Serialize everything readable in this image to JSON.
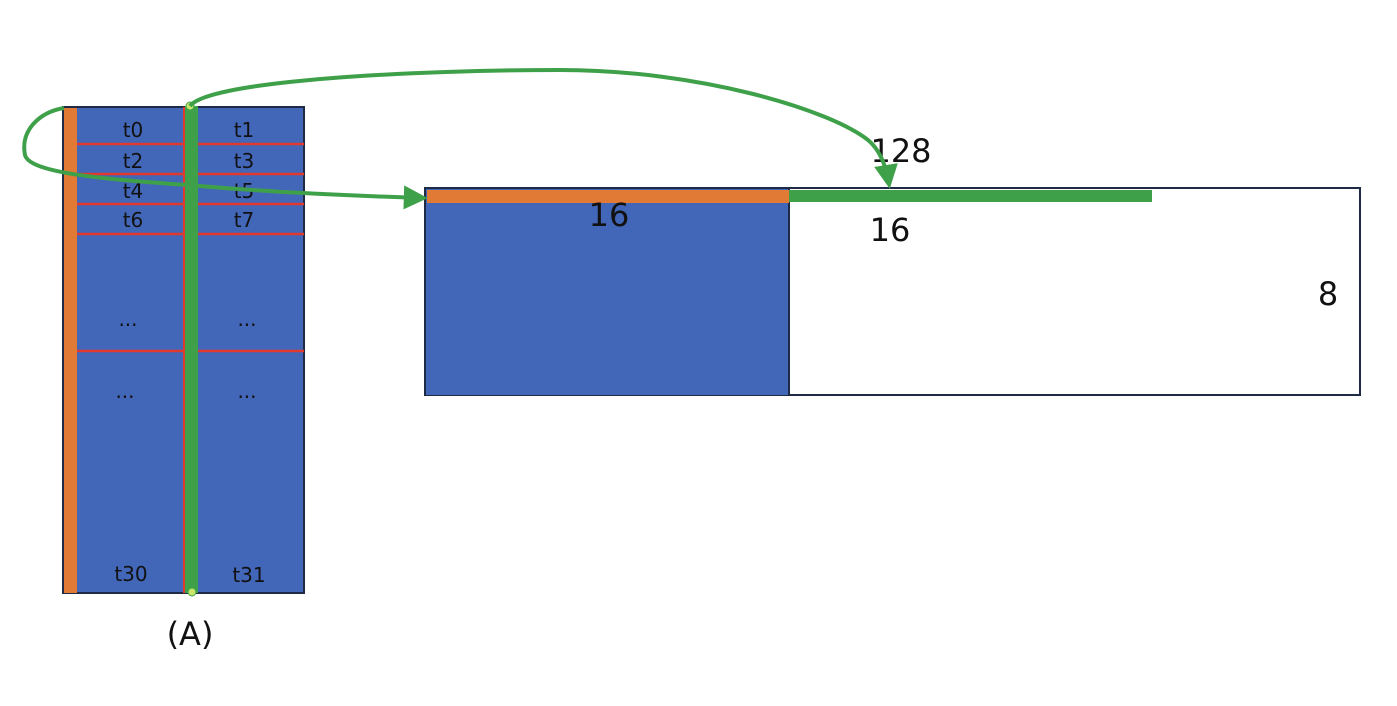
{
  "colors": {
    "block_fill": "#4266B8",
    "block_border": "#1F2A44",
    "row_line": "#E0392E",
    "orange": "#E07A35",
    "green": "#3FA04A",
    "green_node": "#C8E66A"
  },
  "left_block": {
    "caption": "(A)",
    "cells": {
      "t0": "t0",
      "t1": "t1",
      "t2": "t2",
      "t3": "t3",
      "t4": "t4",
      "t5": "t5",
      "t6": "t6",
      "t7": "t7",
      "dots_a_left": "...",
      "dots_a_right": "...",
      "dots_b_left": "...",
      "dots_b_right": "...",
      "t30": "t30",
      "t31": "t31"
    }
  },
  "right_block": {
    "label_128": "128",
    "label_16_blue": "16",
    "label_16_right": "16",
    "label_8": "8"
  }
}
